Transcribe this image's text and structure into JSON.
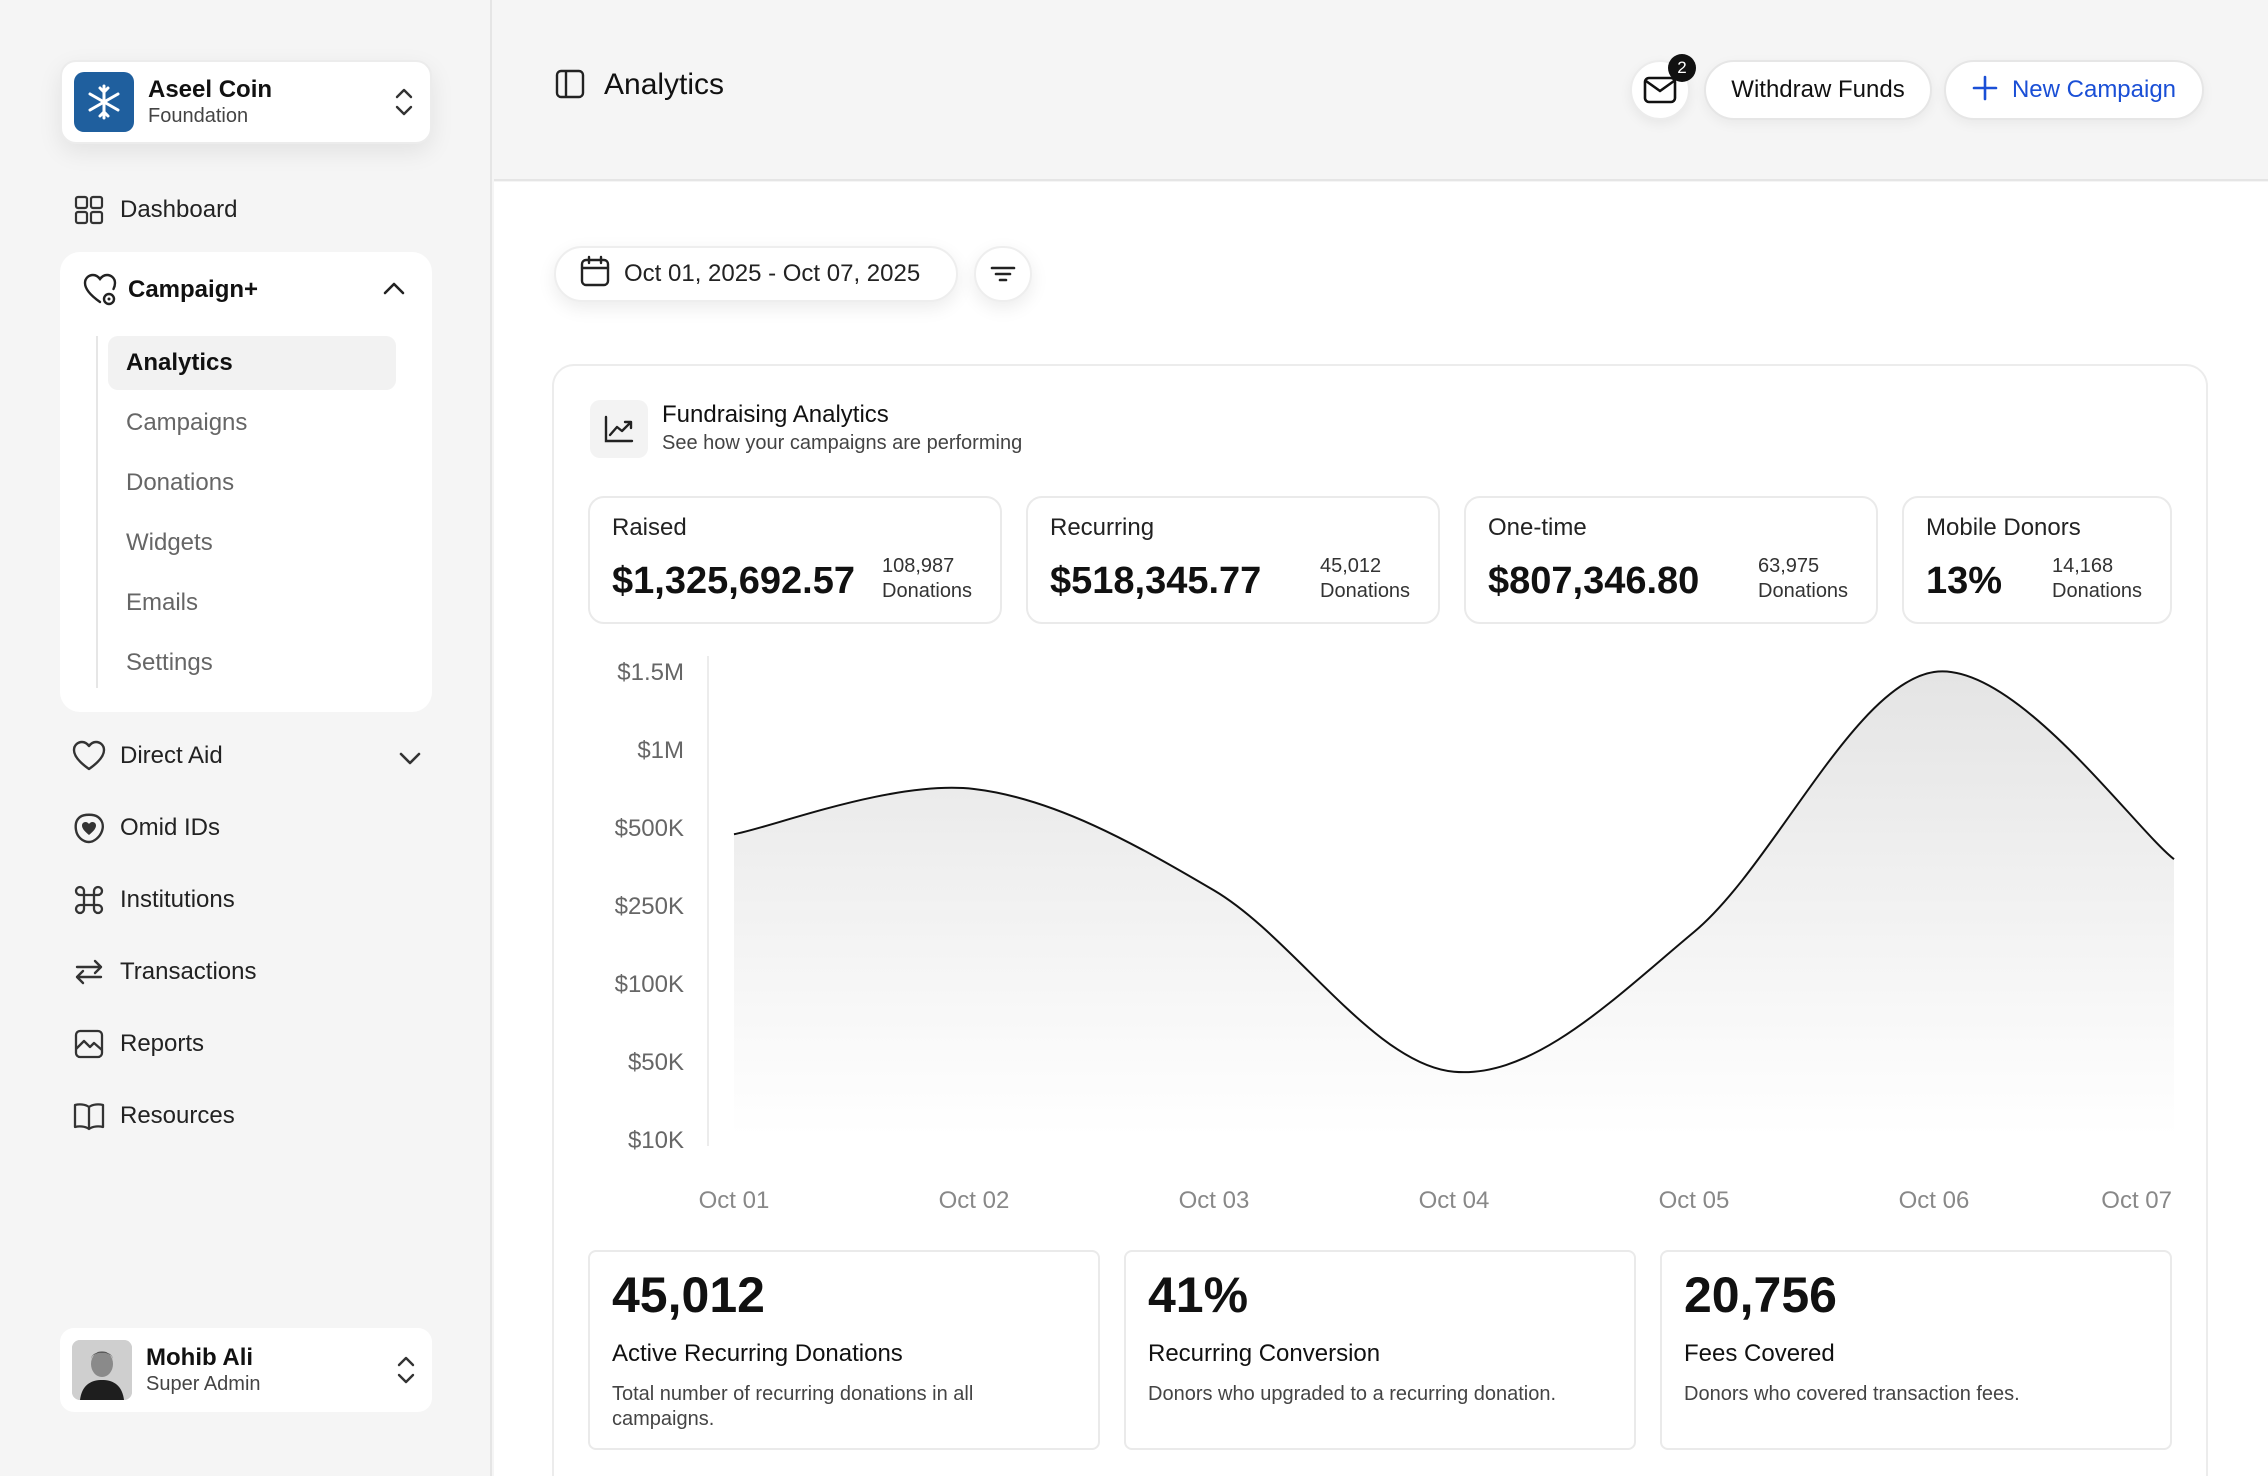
{
  "org": {
    "name": "Aseel Coin",
    "subtitle": "Foundation"
  },
  "nav": {
    "dashboard": "Dashboard",
    "campaign_group": "Campaign+",
    "campaign_items": [
      "Analytics",
      "Campaigns",
      "Donations",
      "Widgets",
      "Emails",
      "Settings"
    ],
    "direct_aid": "Direct Aid",
    "omid_ids": "Omid IDs",
    "institutions": "Institutions",
    "transactions": "Transactions",
    "reports": "Reports",
    "resources": "Resources"
  },
  "user": {
    "name": "Mohib Ali",
    "role": "Super Admin"
  },
  "header": {
    "title": "Analytics",
    "mail_badge": "2",
    "withdraw_label": "Withdraw Funds",
    "new_campaign_label": "New Campaign"
  },
  "date_range": "Oct 01, 2025 - Oct 07, 2025",
  "panel": {
    "title": "Fundraising Analytics",
    "subtitle": "See how your campaigns are performing"
  },
  "stats": [
    {
      "label": "Raised",
      "value": "$1,325,692.57",
      "count": "108,987",
      "count_label": "Donations"
    },
    {
      "label": "Recurring",
      "value": "$518,345.77",
      "count": "45,012",
      "count_label": "Donations"
    },
    {
      "label": "One-time",
      "value": "$807,346.80",
      "count": "63,975",
      "count_label": "Donations"
    },
    {
      "label": "Mobile Donors",
      "value": "13%",
      "count": "14,168",
      "count_label": "Donations"
    }
  ],
  "chart_data": {
    "type": "area",
    "x": [
      "Oct 01",
      "Oct 02",
      "Oct 03",
      "Oct 04",
      "Oct 05",
      "Oct 06",
      "Oct 07"
    ],
    "y_ticks": [
      "$1.5M",
      "$1M",
      "$500K",
      "$250K",
      "$100K",
      "$50K",
      "$10K"
    ],
    "series": [
      {
        "values": [
          480000,
          750000,
          300000,
          45000,
          200000,
          1500000,
          400000
        ]
      }
    ],
    "grid": false,
    "legend": "none",
    "colors": {
      "line": "#111111",
      "fill": "#e4e4e4"
    }
  },
  "metrics": [
    {
      "value": "45,012",
      "title": "Active Recurring Donations",
      "desc": "Total number of recurring donations in all campaigns."
    },
    {
      "value": "41%",
      "title": "Recurring Conversion",
      "desc": "Donors who upgraded to a recurring donation."
    },
    {
      "value": "20,756",
      "title": "Fees Covered",
      "desc": "Donors who covered transaction fees."
    }
  ],
  "colors": {
    "accent": "#1a4fd6",
    "org_logo": "#1f5f9e"
  }
}
